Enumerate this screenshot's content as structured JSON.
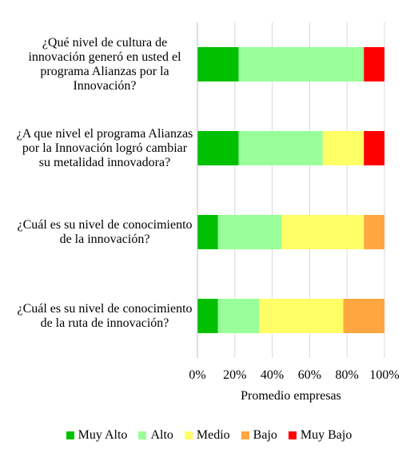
{
  "chart_data": {
    "type": "bar",
    "orientation": "horizontal",
    "stacked": "percent",
    "title": "",
    "xlabel": "Promedio empresas",
    "xlim": [
      0,
      100
    ],
    "xticks": [
      "0%",
      "20%",
      "40%",
      "60%",
      "80%",
      "100%"
    ],
    "grid": true,
    "legend_position": "bottom",
    "categories": [
      "¿Qué nivel de cultura de innovación generó en usted el programa Alianzas por la Innovación?",
      "¿A que nivel el programa Alianzas por la Innovación logró cambiar su metalidad innovadora?",
      "¿Cuál es su nivel de conocimiento de la innovación?",
      "¿Cuál es su nivel de conocimiento de la ruta de innovación?"
    ],
    "series": [
      {
        "name": "Muy Alto",
        "color": "#00c000",
        "values": [
          22,
          22,
          11,
          11
        ]
      },
      {
        "name": "Alto",
        "color": "#99ff99",
        "values": [
          67,
          45,
          34,
          22
        ]
      },
      {
        "name": "Medio",
        "color": "#ffff66",
        "values": [
          0,
          22,
          44,
          45
        ]
      },
      {
        "name": "Bajo",
        "color": "#ffa640",
        "values": [
          0,
          0,
          11,
          22
        ]
      },
      {
        "name": "Muy Bajo",
        "color": "#ff0000",
        "values": [
          11,
          11,
          0,
          0
        ]
      }
    ]
  }
}
